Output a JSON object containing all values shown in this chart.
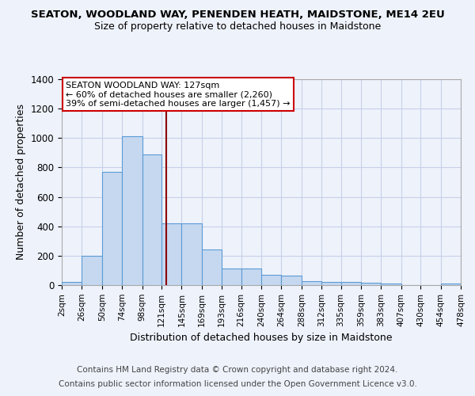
{
  "title": "SEATON, WOODLAND WAY, PENENDEN HEATH, MAIDSTONE, ME14 2EU",
  "subtitle": "Size of property relative to detached houses in Maidstone",
  "xlabel": "Distribution of detached houses by size in Maidstone",
  "ylabel": "Number of detached properties",
  "footnote1": "Contains HM Land Registry data © Crown copyright and database right 2024.",
  "footnote2": "Contains public sector information licensed under the Open Government Licence v3.0.",
  "annotation_line1": "SEATON WOODLAND WAY: 127sqm",
  "annotation_line2": "← 60% of detached houses are smaller (2,260)",
  "annotation_line3": "39% of semi-detached houses are larger (1,457) →",
  "property_size": 127,
  "bin_edges": [
    2,
    26,
    50,
    74,
    98,
    121,
    145,
    169,
    193,
    216,
    240,
    264,
    288,
    312,
    335,
    359,
    383,
    407,
    430,
    454,
    478
  ],
  "bin_labels": [
    "2sqm",
    "26sqm",
    "50sqm",
    "74sqm",
    "98sqm",
    "121sqm",
    "145sqm",
    "169sqm",
    "193sqm",
    "216sqm",
    "240sqm",
    "264sqm",
    "288sqm",
    "312sqm",
    "335sqm",
    "359sqm",
    "383sqm",
    "407sqm",
    "430sqm",
    "454sqm",
    "478sqm"
  ],
  "bar_heights": [
    20,
    200,
    770,
    1010,
    890,
    420,
    420,
    240,
    115,
    115,
    70,
    65,
    25,
    20,
    20,
    15,
    10,
    0,
    0,
    10,
    0
  ],
  "bar_color": "#c5d8f0",
  "bar_edge_color": "#5b9bd5",
  "vline_color": "#8b0000",
  "ylim": [
    0,
    1400
  ],
  "yticks": [
    0,
    200,
    400,
    600,
    800,
    1000,
    1200,
    1400
  ],
  "bg_color": "#eef2fb",
  "annotation_box_color": "#ffffff",
  "annotation_box_edge": "#cc0000",
  "grid_color": "#c8d0e8",
  "title_fontsize": 9.5,
  "subtitle_fontsize": 9.0,
  "footnote_fontsize": 7.5
}
